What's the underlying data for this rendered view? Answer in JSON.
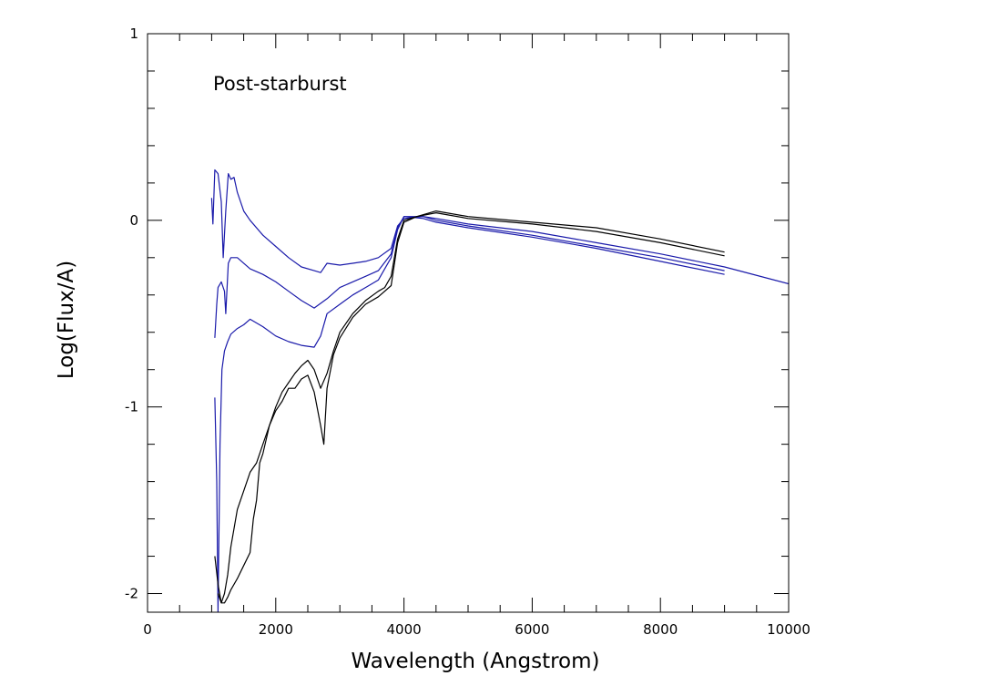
{
  "chart_data": {
    "type": "line",
    "title": "",
    "annotation": "Post-starburst",
    "xlabel": "Wavelength (Angstrom)",
    "ylabel": "Log(Flux/A)",
    "xlim": [
      0,
      10000
    ],
    "ylim": [
      -2.1,
      1
    ],
    "x_ticks": [
      0,
      2000,
      4000,
      6000,
      8000,
      10000
    ],
    "x_tick_labels": [
      "0",
      "2000",
      "4000",
      "6000",
      "8000",
      "10000"
    ],
    "y_ticks": [
      -2,
      -1,
      0,
      1
    ],
    "y_tick_labels": [
      "-2",
      "-1",
      "0",
      "1"
    ],
    "grid": false,
    "legend": "none",
    "colors": {
      "black": "#000000",
      "blue": "#1a1aaa",
      "frame": "#000000"
    },
    "series": [
      {
        "color": "blue",
        "points": [
          [
            1000,
            0.12
          ],
          [
            1020,
            -0.02
          ],
          [
            1050,
            0.27
          ],
          [
            1100,
            0.25
          ],
          [
            1150,
            0.1
          ],
          [
            1180,
            -0.2
          ],
          [
            1220,
            0.05
          ],
          [
            1260,
            0.25
          ],
          [
            1300,
            0.22
          ],
          [
            1350,
            0.23
          ],
          [
            1400,
            0.15
          ],
          [
            1500,
            0.05
          ],
          [
            1600,
            0.0
          ],
          [
            1800,
            -0.08
          ],
          [
            2000,
            -0.14
          ],
          [
            2200,
            -0.2
          ],
          [
            2400,
            -0.25
          ],
          [
            2600,
            -0.27
          ],
          [
            2700,
            -0.28
          ],
          [
            2800,
            -0.23
          ],
          [
            3000,
            -0.24
          ],
          [
            3200,
            -0.23
          ],
          [
            3400,
            -0.22
          ],
          [
            3600,
            -0.2
          ],
          [
            3800,
            -0.15
          ],
          [
            3900,
            -0.03
          ],
          [
            4000,
            0.01
          ],
          [
            4300,
            0.02
          ],
          [
            4500,
            0.01
          ],
          [
            5000,
            -0.02
          ],
          [
            6000,
            -0.06
          ],
          [
            7000,
            -0.12
          ],
          [
            8000,
            -0.18
          ],
          [
            9000,
            -0.25
          ],
          [
            10000,
            -0.34
          ]
        ]
      },
      {
        "color": "blue",
        "points": [
          [
            1050,
            -0.63
          ],
          [
            1080,
            -0.45
          ],
          [
            1100,
            -0.36
          ],
          [
            1150,
            -0.33
          ],
          [
            1200,
            -0.38
          ],
          [
            1220,
            -0.5
          ],
          [
            1260,
            -0.23
          ],
          [
            1300,
            -0.2
          ],
          [
            1400,
            -0.2
          ],
          [
            1600,
            -0.26
          ],
          [
            1800,
            -0.29
          ],
          [
            2000,
            -0.33
          ],
          [
            2200,
            -0.38
          ],
          [
            2400,
            -0.43
          ],
          [
            2600,
            -0.47
          ],
          [
            2800,
            -0.42
          ],
          [
            3000,
            -0.36
          ],
          [
            3200,
            -0.33
          ],
          [
            3400,
            -0.3
          ],
          [
            3600,
            -0.27
          ],
          [
            3800,
            -0.18
          ],
          [
            3900,
            -0.04
          ],
          [
            4000,
            0.02
          ],
          [
            4300,
            0.02
          ],
          [
            4500,
            0.0
          ],
          [
            5000,
            -0.03
          ],
          [
            6000,
            -0.08
          ],
          [
            7000,
            -0.14
          ],
          [
            8000,
            -0.2
          ],
          [
            9000,
            -0.27
          ]
        ]
      },
      {
        "color": "blue",
        "points": [
          [
            1050,
            -0.95
          ],
          [
            1080,
            -1.4
          ],
          [
            1100,
            -2.1
          ],
          [
            1130,
            -1.2
          ],
          [
            1160,
            -0.8
          ],
          [
            1200,
            -0.7
          ],
          [
            1250,
            -0.65
          ],
          [
            1300,
            -0.61
          ],
          [
            1400,
            -0.58
          ],
          [
            1500,
            -0.56
          ],
          [
            1600,
            -0.53
          ],
          [
            1800,
            -0.57
          ],
          [
            2000,
            -0.62
          ],
          [
            2200,
            -0.65
          ],
          [
            2400,
            -0.67
          ],
          [
            2600,
            -0.68
          ],
          [
            2700,
            -0.62
          ],
          [
            2800,
            -0.5
          ],
          [
            3000,
            -0.45
          ],
          [
            3200,
            -0.4
          ],
          [
            3400,
            -0.36
          ],
          [
            3600,
            -0.32
          ],
          [
            3800,
            -0.2
          ],
          [
            3900,
            -0.05
          ],
          [
            4000,
            0.02
          ],
          [
            4300,
            0.01
          ],
          [
            4500,
            -0.01
          ],
          [
            5000,
            -0.04
          ],
          [
            6000,
            -0.09
          ],
          [
            7000,
            -0.15
          ],
          [
            8000,
            -0.22
          ],
          [
            9000,
            -0.29
          ]
        ]
      },
      {
        "color": "black",
        "points": [
          [
            1050,
            -1.8
          ],
          [
            1100,
            -1.95
          ],
          [
            1150,
            -2.05
          ],
          [
            1200,
            -2.0
          ],
          [
            1250,
            -1.9
          ],
          [
            1300,
            -1.75
          ],
          [
            1400,
            -1.55
          ],
          [
            1500,
            -1.45
          ],
          [
            1600,
            -1.35
          ],
          [
            1700,
            -1.3
          ],
          [
            1800,
            -1.2
          ],
          [
            1900,
            -1.1
          ],
          [
            2000,
            -1.0
          ],
          [
            2100,
            -0.92
          ],
          [
            2200,
            -0.87
          ],
          [
            2300,
            -0.82
          ],
          [
            2400,
            -0.78
          ],
          [
            2500,
            -0.75
          ],
          [
            2600,
            -0.8
          ],
          [
            2700,
            -0.9
          ],
          [
            2800,
            -0.82
          ],
          [
            2900,
            -0.7
          ],
          [
            3000,
            -0.6
          ],
          [
            3200,
            -0.5
          ],
          [
            3400,
            -0.43
          ],
          [
            3600,
            -0.38
          ],
          [
            3700,
            -0.36
          ],
          [
            3800,
            -0.3
          ],
          [
            3900,
            -0.1
          ],
          [
            4000,
            0.0
          ],
          [
            4200,
            0.02
          ],
          [
            4500,
            0.05
          ],
          [
            5000,
            0.02
          ],
          [
            6000,
            -0.01
          ],
          [
            7000,
            -0.04
          ],
          [
            8000,
            -0.1
          ],
          [
            9000,
            -0.17
          ]
        ]
      },
      {
        "color": "black",
        "points": [
          [
            1100,
            -2.0
          ],
          [
            1150,
            -2.05
          ],
          [
            1200,
            -2.05
          ],
          [
            1250,
            -2.02
          ],
          [
            1300,
            -1.98
          ],
          [
            1400,
            -1.92
          ],
          [
            1500,
            -1.85
          ],
          [
            1600,
            -1.78
          ],
          [
            1650,
            -1.6
          ],
          [
            1700,
            -1.5
          ],
          [
            1750,
            -1.3
          ],
          [
            1800,
            -1.25
          ],
          [
            1900,
            -1.1
          ],
          [
            2000,
            -1.02
          ],
          [
            2100,
            -0.97
          ],
          [
            2200,
            -0.9
          ],
          [
            2300,
            -0.9
          ],
          [
            2400,
            -0.85
          ],
          [
            2500,
            -0.83
          ],
          [
            2600,
            -0.92
          ],
          [
            2700,
            -1.1
          ],
          [
            2750,
            -1.2
          ],
          [
            2800,
            -0.9
          ],
          [
            2900,
            -0.72
          ],
          [
            3000,
            -0.63
          ],
          [
            3200,
            -0.52
          ],
          [
            3400,
            -0.45
          ],
          [
            3600,
            -0.41
          ],
          [
            3800,
            -0.35
          ],
          [
            3900,
            -0.12
          ],
          [
            4000,
            -0.01
          ],
          [
            4200,
            0.02
          ],
          [
            4500,
            0.04
          ],
          [
            5000,
            0.01
          ],
          [
            6000,
            -0.02
          ],
          [
            7000,
            -0.06
          ],
          [
            8000,
            -0.12
          ],
          [
            9000,
            -0.19
          ]
        ]
      }
    ]
  }
}
